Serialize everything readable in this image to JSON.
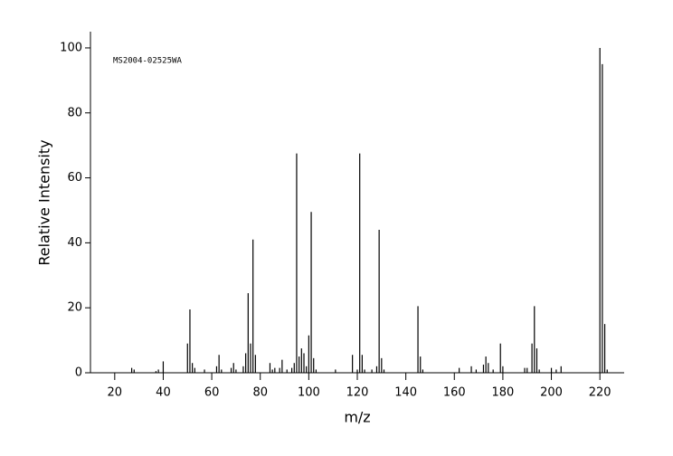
{
  "chart_data": {
    "type": "stem",
    "annotation": "MS2004-02525WA",
    "x_label": "m/z",
    "y_label": "Relative Intensity",
    "color": "#000000",
    "xlim": [
      10,
      230
    ],
    "ylim": [
      0,
      105
    ],
    "xticks": [
      20,
      40,
      60,
      80,
      100,
      120,
      140,
      160,
      180,
      200,
      220
    ],
    "yticks": [
      0,
      20,
      40,
      60,
      80,
      100
    ],
    "x": [
      27,
      28,
      37,
      38,
      40,
      50,
      51,
      52,
      53,
      57,
      62,
      63,
      64,
      68,
      69,
      70,
      73,
      74,
      75,
      76,
      77,
      78,
      84,
      85,
      86,
      88,
      89,
      91,
      93,
      94,
      95,
      96,
      97,
      98,
      99,
      100,
      101,
      102,
      103,
      111,
      118,
      120,
      121,
      122,
      123,
      126,
      128,
      129,
      130,
      131,
      145,
      146,
      147,
      162,
      167,
      169,
      172,
      173,
      174,
      176,
      179,
      180,
      189,
      190,
      192,
      193,
      194,
      195,
      200,
      202,
      204,
      220,
      221,
      222,
      223
    ],
    "values": [
      1.5,
      1,
      0.5,
      1,
      3.5,
      9,
      19.5,
      3,
      1.5,
      1,
      2,
      5.5,
      1,
      1.5,
      3,
      1,
      2,
      6,
      24.5,
      9,
      41,
      5.5,
      3,
      1,
      1.5,
      1.5,
      4,
      1,
      1.5,
      3,
      67.5,
      5,
      7.5,
      6,
      2,
      11.5,
      49.5,
      4.5,
      1,
      1,
      5.5,
      1,
      67.5,
      5.5,
      1,
      1,
      2,
      44,
      4.5,
      1,
      20.5,
      5,
      1,
      1.5,
      2,
      1,
      2.5,
      5,
      3,
      1,
      9,
      2,
      1.5,
      1.5,
      9,
      20.5,
      7.5,
      1,
      1.5,
      1,
      2,
      100,
      95,
      15,
      1
    ]
  }
}
